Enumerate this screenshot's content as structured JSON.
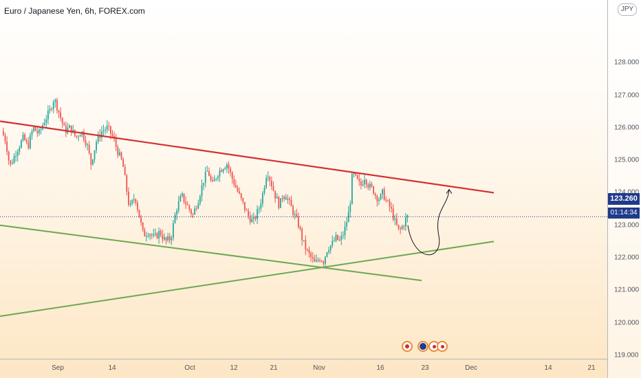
{
  "title": "Euro / Japanese Yen, 6h, FOREX.com",
  "currency_badge": "JPY",
  "current_price": "123.260",
  "countdown": "01:14:34",
  "colors": {
    "up": "#26a69a",
    "down": "#ef5350",
    "resistance": "#d32f2f",
    "support": "#6aa84f",
    "price_tag": "#1e3a8a"
  },
  "chart_data": {
    "type": "candlestick",
    "symbol": "EURJPY",
    "timeframe": "6h",
    "ylim": [
      118.3,
      129.4
    ],
    "y_ticks": [
      "119.000",
      "120.000",
      "121.000",
      "122.000",
      "123.000",
      "124.000",
      "125.000",
      "126.000",
      "127.000",
      "128.000"
    ],
    "x_ticks": [
      "Sep",
      "14",
      "Oct",
      "12",
      "21",
      "Nov",
      "16",
      "23",
      "Dec",
      "14",
      "21"
    ],
    "price_path": [
      [
        125.9,
        4
      ],
      [
        125.6,
        10
      ],
      [
        124.8,
        16
      ],
      [
        125.3,
        26
      ],
      [
        125.7,
        36
      ],
      [
        125.4,
        42
      ],
      [
        126.0,
        50
      ],
      [
        125.8,
        58
      ],
      [
        126.2,
        66
      ],
      [
        126.5,
        74
      ],
      [
        126.9,
        80
      ],
      [
        126.7,
        84
      ],
      [
        126.3,
        90
      ],
      [
        125.9,
        96
      ],
      [
        126.0,
        104
      ],
      [
        125.7,
        112
      ],
      [
        125.9,
        120
      ],
      [
        125.5,
        128
      ],
      [
        124.9,
        134
      ],
      [
        125.6,
        142
      ],
      [
        125.9,
        150
      ],
      [
        126.0,
        158
      ],
      [
        125.7,
        166
      ],
      [
        125.2,
        174
      ],
      [
        124.9,
        180
      ],
      [
        123.5,
        190
      ],
      [
        123.9,
        198
      ],
      [
        123.3,
        204
      ],
      [
        122.7,
        210
      ],
      [
        122.8,
        218
      ],
      [
        122.6,
        226
      ],
      [
        122.8,
        234
      ],
      [
        122.5,
        242
      ],
      [
        122.6,
        250
      ],
      [
        123.5,
        258
      ],
      [
        123.9,
        266
      ],
      [
        123.6,
        274
      ],
      [
        123.3,
        282
      ],
      [
        123.8,
        290
      ],
      [
        124.4,
        298
      ],
      [
        124.7,
        304
      ],
      [
        124.2,
        310
      ],
      [
        124.6,
        318
      ],
      [
        124.8,
        326
      ],
      [
        124.9,
        332
      ],
      [
        124.5,
        338
      ],
      [
        124.1,
        346
      ],
      [
        123.7,
        354
      ],
      [
        123.3,
        362
      ],
      [
        123.1,
        370
      ],
      [
        123.5,
        378
      ],
      [
        124.0,
        384
      ],
      [
        124.7,
        390
      ],
      [
        124.3,
        396
      ],
      [
        123.9,
        402
      ],
      [
        123.6,
        408
      ],
      [
        124.0,
        414
      ],
      [
        123.8,
        420
      ],
      [
        123.5,
        426
      ],
      [
        123.2,
        432
      ],
      [
        123.0,
        436
      ],
      [
        122.5,
        442
      ],
      [
        122.2,
        448
      ],
      [
        122.0,
        454
      ],
      [
        121.8,
        460
      ],
      [
        122.0,
        466
      ],
      [
        121.9,
        472
      ],
      [
        122.3,
        478
      ],
      [
        122.4,
        484
      ],
      [
        122.6,
        490
      ],
      [
        122.5,
        496
      ],
      [
        122.8,
        502
      ],
      [
        123.3,
        508
      ],
      [
        123.9,
        512
      ],
      [
        124.6,
        514
      ],
      [
        124.4,
        520
      ],
      [
        124.2,
        526
      ],
      [
        124.5,
        532
      ],
      [
        124.2,
        538
      ],
      [
        124.1,
        544
      ],
      [
        123.9,
        548
      ],
      [
        123.8,
        554
      ],
      [
        124.0,
        558
      ],
      [
        123.7,
        564
      ],
      [
        123.5,
        570
      ],
      [
        123.1,
        576
      ],
      [
        122.8,
        582
      ],
      [
        123.0,
        588
      ],
      [
        123.26,
        593
      ]
    ],
    "annotations": {
      "resistance_line": [
        [
          0,
          126.2
        ],
        [
          718,
          124.0
        ]
      ],
      "support_line": [
        [
          0,
          123.0
        ],
        [
          613,
          121.3
        ]
      ],
      "rising_line": [
        [
          0,
          120.2
        ],
        [
          718,
          122.5
        ]
      ],
      "projection_curve": [
        [
          593,
          123.0
        ],
        [
          620,
          122.25
        ],
        [
          653,
          124.1
        ]
      ],
      "current_price_line": 123.26
    }
  }
}
